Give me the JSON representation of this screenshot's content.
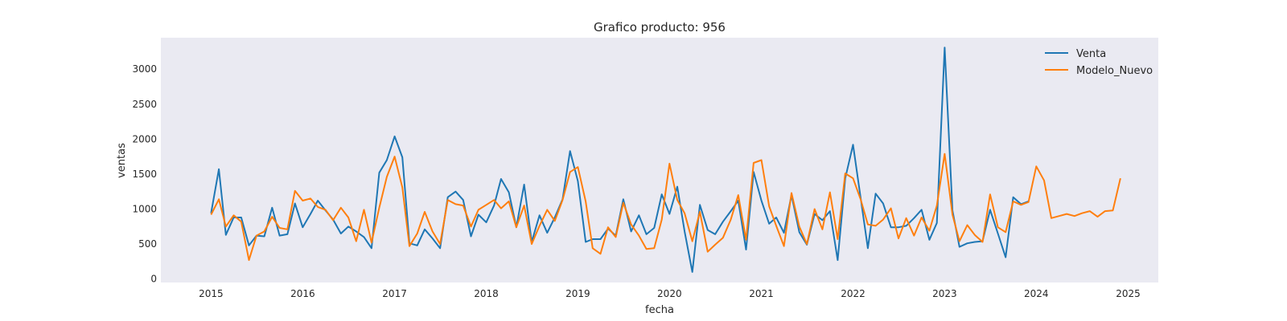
{
  "chart_data": {
    "type": "line",
    "title": "Grafico producto: 956",
    "xlabel": "fecha",
    "ylabel": "ventas",
    "xlim": [
      "2014-06-15",
      "2025-05-01"
    ],
    "ylim": [
      -50,
      3450
    ],
    "x_ticks": [
      "2015",
      "2016",
      "2017",
      "2018",
      "2019",
      "2020",
      "2021",
      "2022",
      "2023",
      "2024",
      "2025"
    ],
    "y_ticks": [
      0,
      500,
      1000,
      1500,
      2000,
      2500,
      3000
    ],
    "grid": false,
    "legend": "top-right",
    "background": "#eaeaf2",
    "series": [
      {
        "name": "Venta",
        "color": "#1f77b4",
        "start": "2015-01",
        "values": [
          940,
          1570,
          630,
          880,
          880,
          480,
          620,
          610,
          1020,
          620,
          640,
          1080,
          740,
          930,
          1120,
          980,
          850,
          650,
          750,
          680,
          600,
          440,
          1520,
          1700,
          2040,
          1740,
          510,
          480,
          710,
          580,
          440,
          1170,
          1250,
          1130,
          610,
          920,
          810,
          1050,
          1430,
          1240,
          740,
          1350,
          530,
          910,
          660,
          880,
          1140,
          1830,
          1400,
          530,
          570,
          570,
          720,
          620,
          1140,
          680,
          910,
          640,
          730,
          1210,
          930,
          1320,
          680,
          100,
          1060,
          700,
          640,
          820,
          970,
          1120,
          420,
          1530,
          1120,
          790,
          880,
          660,
          1200,
          670,
          490,
          930,
          840,
          970,
          270,
          1440,
          1920,
          1140,
          440,
          1220,
          1080,
          740,
          740,
          760,
          870,
          990,
          560,
          800,
          3310,
          980,
          460,
          510,
          530,
          540,
          990,
          650,
          310,
          1170,
          1070,
          1110
        ]
      },
      {
        "name": "Modelo_Nuevo",
        "color": "#ff7f0e",
        "start": "2015-01",
        "values": [
          920,
          1140,
          750,
          910,
          820,
          270,
          620,
          680,
          890,
          730,
          710,
          1260,
          1120,
          1150,
          1030,
          990,
          840,
          1020,
          880,
          540,
          990,
          520,
          1020,
          1460,
          1750,
          1310,
          470,
          650,
          960,
          680,
          500,
          1130,
          1070,
          1050,
          750,
          990,
          1060,
          1130,
          1010,
          1110,
          740,
          1050,
          500,
          760,
          990,
          830,
          1130,
          1530,
          1600,
          1110,
          440,
          360,
          740,
          600,
          1090,
          780,
          620,
          430,
          440,
          850,
          1650,
          1130,
          940,
          540,
          960,
          390,
          490,
          590,
          850,
          1200,
          560,
          1660,
          1700,
          1040,
          760,
          470,
          1230,
          750,
          500,
          1000,
          710,
          1240,
          570,
          1510,
          1440,
          1130,
          780,
          760,
          850,
          1010,
          580,
          870,
          620,
          880,
          690,
          1050,
          1790,
          920,
          540,
          770,
          630,
          530,
          1210,
          740,
          670,
          1110,
          1060,
          1100,
          1610,
          1410,
          870,
          900,
          930,
          900,
          940,
          970,
          890,
          970,
          980,
          1440
        ]
      }
    ]
  }
}
